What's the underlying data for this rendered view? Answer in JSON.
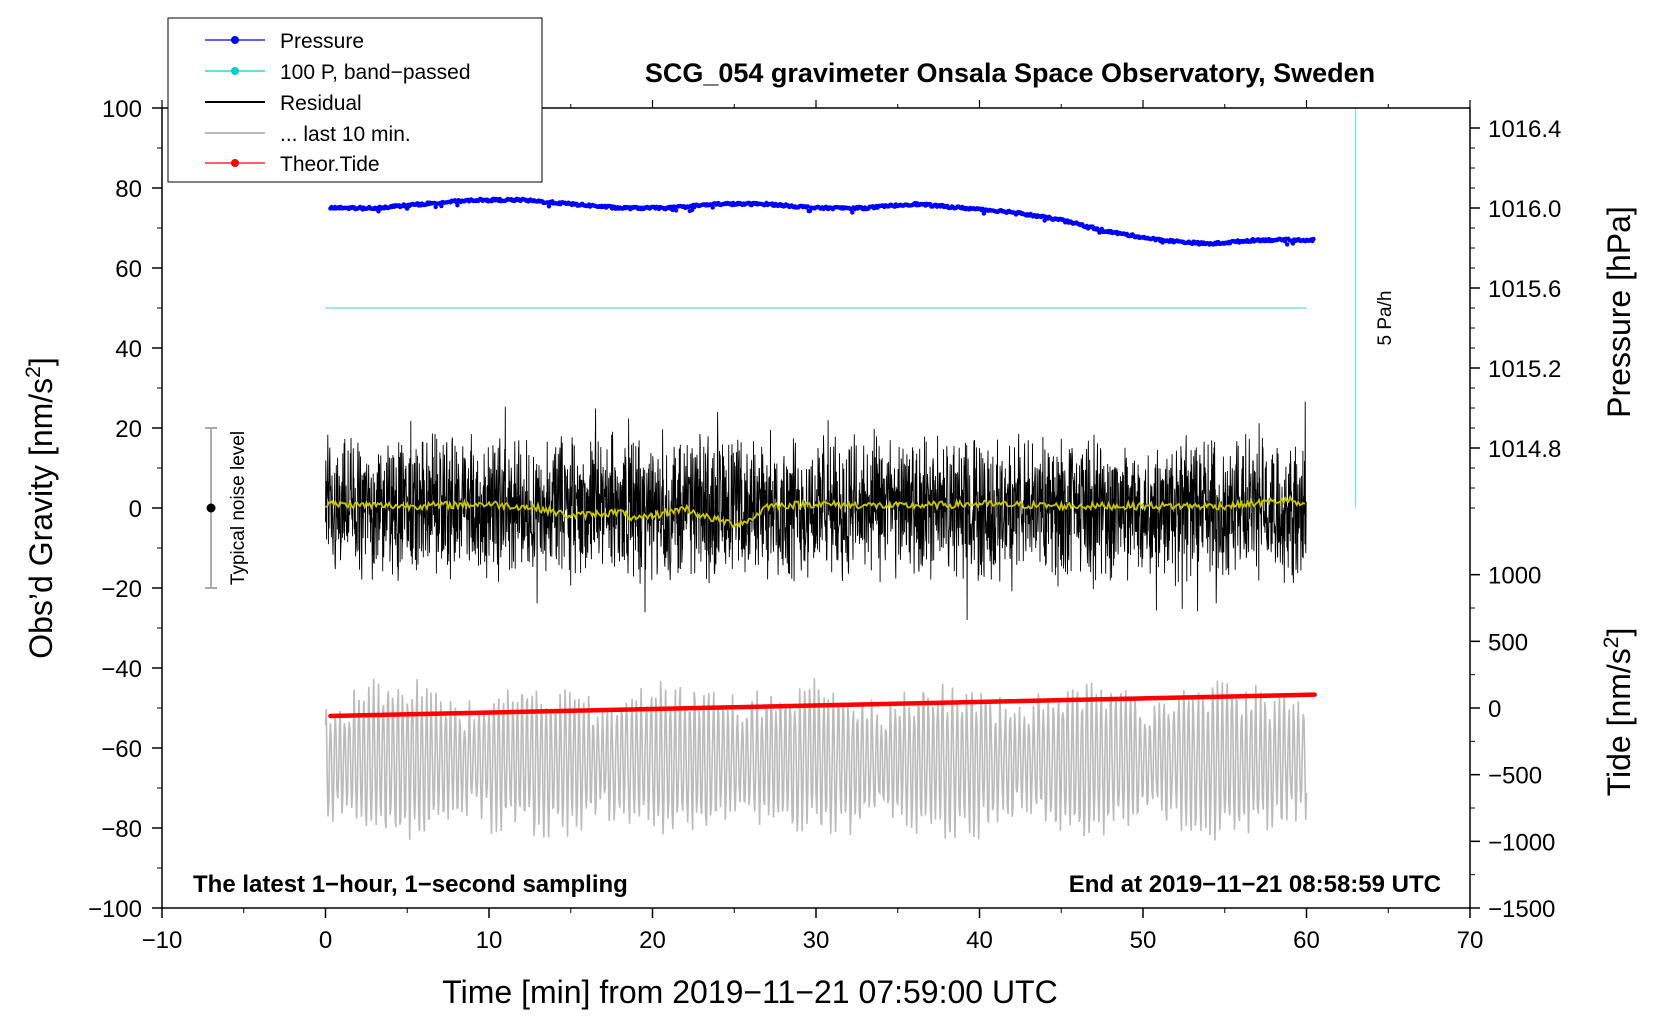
{
  "chart_data": {
    "type": "line",
    "title": "SCG_054 gravimeter Onsala Space Observatory, Sweden",
    "xlabel": "Time [min] from 2019−11−21 07:59:00 UTC",
    "ylabel_left_prefix": "Obs’d Gravity [nm/s",
    "ylabel_left_sup": "2",
    "ylabel_left_suffix": "]",
    "ylabel_pressure": "Pressure [hPa]",
    "ylabel_tide_prefix": "Tide [nm/s",
    "ylabel_tide_sup": "2",
    "ylabel_tide_suffix": "]",
    "xlim": [
      -10,
      70
    ],
    "ylim": [
      -100,
      100
    ],
    "x_ticks": [
      -10,
      0,
      10,
      20,
      30,
      40,
      50,
      60,
      70
    ],
    "x_tick_labels": [
      "−10",
      "0",
      "10",
      "20",
      "30",
      "40",
      "50",
      "60",
      "70"
    ],
    "y_ticks": [
      -100,
      -80,
      -60,
      -40,
      -20,
      0,
      20,
      40,
      60,
      80,
      100
    ],
    "y_tick_labels": [
      "−100",
      "−80",
      "−60",
      "−40",
      "−20",
      "0",
      "20",
      "40",
      "60",
      "80",
      "100"
    ],
    "pressure_axis": {
      "ticks": [
        1014.8,
        1015.2,
        1015.6,
        1016.0,
        1016.4
      ],
      "tick_labels": [
        "1014.8",
        "1015.2",
        "1015.6",
        "1016.0",
        "1016.4"
      ],
      "map": {
        "gravity_at_0": 1014.5,
        "hpa_per_gravity_unit": 0.02
      }
    },
    "tide_axis": {
      "ticks": [
        1000,
        500,
        0,
        -500,
        -1000,
        -1500
      ],
      "tick_labels": [
        "1000",
        "500",
        "0",
        "−500",
        "−1000",
        "−1500"
      ],
      "map": {
        "gravity_at_0": 1500,
        "tide_per_gravity_unit": 30
      }
    },
    "legend": [
      {
        "label": "Pressure",
        "color": "#0000ff",
        "style": "line-dot"
      },
      {
        "label": "100 P, band−passed",
        "color": "#00cccc",
        "style": "line-dot"
      },
      {
        "label": "Residual",
        "color": "#000000",
        "style": "line"
      },
      {
        "label": "... last 10 min.",
        "color": "#bbbbbb",
        "style": "line"
      },
      {
        "label": "Theor.Tide",
        "color": "#ff0000",
        "style": "line-dot"
      }
    ],
    "series": [
      {
        "name": "Pressure",
        "color": "#0000ff",
        "unit": "hPa",
        "x": [
          0,
          3,
          6,
          9,
          12,
          15,
          18,
          21,
          24,
          27,
          30,
          33,
          36,
          39,
          42,
          45,
          48,
          51,
          54,
          57,
          60
        ],
        "values": [
          1016.0,
          1016.0,
          1016.02,
          1016.04,
          1016.04,
          1016.02,
          1016.0,
          1016.0,
          1016.02,
          1016.02,
          1016.0,
          1016.0,
          1016.02,
          1016.0,
          1015.98,
          1015.94,
          1015.88,
          1015.84,
          1015.82,
          1015.84,
          1015.84
        ]
      },
      {
        "name": "100 P, band−passed",
        "color": "#00cccc",
        "unit": "nm/s2",
        "x": [
          0,
          60
        ],
        "values": [
          50,
          50
        ]
      },
      {
        "name": "Residual",
        "color": "#000000",
        "unit": "nm/s2",
        "x_range": [
          0,
          60
        ],
        "mean": 0,
        "approx_min": -28,
        "approx_max": 30
      },
      {
        "name": "Residual smoothed",
        "color": "#c8c800",
        "unit": "nm/s2",
        "x": [
          0,
          5,
          10,
          13,
          15,
          18,
          19,
          22,
          23,
          24,
          25,
          26,
          27,
          30,
          35,
          40,
          45,
          50,
          55,
          59,
          60
        ],
        "values": [
          1,
          0.5,
          1,
          0,
          -2,
          -1,
          -3,
          0,
          -2,
          -3,
          -4,
          -3,
          0.5,
          1,
          0.5,
          1,
          0.5,
          0.5,
          0.5,
          2,
          0
        ]
      },
      {
        "name": "... last 10 min.",
        "color": "#bbbbbb",
        "unit": "nm/s2",
        "x_range": [
          0,
          60
        ],
        "mean": -63,
        "approx_min": -90,
        "approx_max": -38
      },
      {
        "name": "Theor.Tide",
        "color": "#ff0000",
        "unit": "nm/s2",
        "x": [
          0,
          60
        ],
        "values": [
          -60,
          100
        ]
      }
    ],
    "noise_bar": {
      "x": -7,
      "y_center": 0,
      "y_low": -20,
      "y_high": 20,
      "label": "Typical noise level"
    },
    "rate_marker": {
      "x": 63,
      "y_low": 0,
      "y_high": 100,
      "label": "5 Pa/h"
    },
    "annotations": {
      "left": "The latest 1−hour, 1−second sampling",
      "right": "End at 2019−11−21 08:58:59 UTC"
    },
    "grid": false
  }
}
